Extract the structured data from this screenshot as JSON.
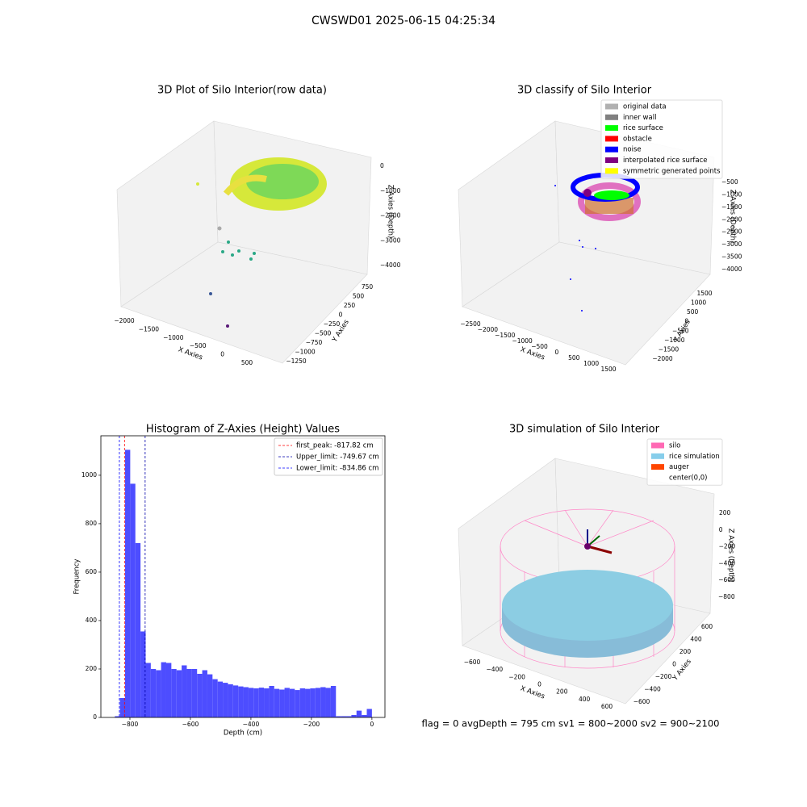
{
  "title": "CWSWD01 2025-06-15 04:25:34",
  "footer": "flag = 0     avgDepth = 795 cm  sv1 = 800~2000  sv2 = 900~2100",
  "chart_data": [
    {
      "type": "scatter3d",
      "title": "3D Plot of Silo Interior(row data)",
      "x_label": "X Axies",
      "y_label": "Y Axies",
      "z_label": "Z Axies (Depth)",
      "xticks": [
        {
          "value": -2000,
          "label": "−2000"
        },
        {
          "value": -1500,
          "label": "−1500"
        },
        {
          "value": -1000,
          "label": "−1000"
        },
        {
          "value": -500,
          "label": "−500"
        },
        0,
        500
      ],
      "yticks": [
        750,
        500,
        250,
        0,
        {
          "value": -250,
          "label": "−250"
        },
        {
          "value": -500,
          "label": "−500"
        },
        {
          "value": -750,
          "label": "−750"
        },
        {
          "value": -1000,
          "label": "−1000"
        },
        {
          "value": -1250,
          "label": "−1250"
        }
      ],
      "zticks": [
        0,
        {
          "value": -1000,
          "label": "−1000"
        },
        {
          "value": -2000,
          "label": "−2000"
        },
        {
          "value": -3000,
          "label": "−3000"
        },
        {
          "value": -4000,
          "label": "−4000"
        }
      ]
    },
    {
      "type": "scatter3d",
      "title": "3D classify of Silo Interior",
      "x_label": "X Axies",
      "y_label": "Y Axies",
      "z_label": "Z Axies (Depth)",
      "xticks": [
        {
          "value": -2500,
          "label": "−2500"
        },
        {
          "value": -2000,
          "label": "−2000"
        },
        {
          "value": -1500,
          "label": "−1500"
        },
        {
          "value": -1000,
          "label": "−1000"
        },
        {
          "value": -500,
          "label": "−500"
        },
        0,
        500,
        1000,
        1500
      ],
      "yticks": [
        1500,
        1000,
        500,
        0,
        {
          "value": -500,
          "label": "−500"
        },
        {
          "value": -1000,
          "label": "−1000"
        },
        {
          "value": -1500,
          "label": "−1500"
        },
        {
          "value": -2000,
          "label": "−2000"
        }
      ],
      "zticks": [
        {
          "value": -500,
          "label": "−500"
        },
        {
          "value": -1000,
          "label": "−1000"
        },
        {
          "value": -1500,
          "label": "−1500"
        },
        {
          "value": -2000,
          "label": "−2000"
        },
        {
          "value": -2500,
          "label": "−2500"
        },
        {
          "value": -3000,
          "label": "−3000"
        },
        {
          "value": -3500,
          "label": "−3500"
        },
        {
          "value": -4000,
          "label": "−4000"
        }
      ],
      "legend": [
        {
          "name": "original data",
          "color": "#b0b0b0"
        },
        {
          "name": "inner wall",
          "color": "#808080"
        },
        {
          "name": "rice surface",
          "color": "#00ff00"
        },
        {
          "name": "obstacle",
          "color": "#ff0000"
        },
        {
          "name": "noise",
          "color": "#0000ff"
        },
        {
          "name": "interpolated rice surface",
          "color": "#800080"
        },
        {
          "name": "symmetric generated points",
          "color": "#ffff00"
        }
      ]
    },
    {
      "type": "histogram",
      "title": "Histogram of Z-Axies (Height) Values",
      "x_label": "Depth (cm)",
      "y_label": "Frequency",
      "color": "#4d4dff",
      "bins": [
        -850,
        -833,
        -816,
        -799,
        -782,
        -765,
        -748,
        -731,
        -714,
        -697,
        -680,
        -663,
        -646,
        -629,
        -612,
        -595,
        -578,
        -561,
        -544,
        -527,
        -510,
        -493,
        -476,
        -459,
        -442,
        -425,
        -408,
        -391,
        -374,
        -357,
        -340,
        -323,
        -306,
        -289,
        -272,
        -255,
        -238,
        -221,
        -204,
        -187,
        -170,
        -153,
        -136,
        -119,
        -102,
        -85,
        -68,
        -51,
        -34,
        -17,
        0
      ],
      "values": [
        5,
        80,
        1105,
        965,
        720,
        355,
        225,
        200,
        195,
        228,
        225,
        200,
        195,
        215,
        200,
        200,
        180,
        195,
        178,
        158,
        148,
        143,
        137,
        132,
        128,
        125,
        122,
        120,
        123,
        120,
        130,
        118,
        115,
        122,
        118,
        113,
        120,
        118,
        120,
        122,
        125,
        122,
        130,
        5,
        5,
        5,
        10,
        28,
        10,
        35
      ],
      "xlim": [
        -896,
        43
      ],
      "ylim": [
        0,
        1163
      ],
      "xticks": [
        {
          "value": -800,
          "label": "−800"
        },
        {
          "value": -600,
          "label": "−600"
        },
        {
          "value": -400,
          "label": "−400"
        },
        {
          "value": -200,
          "label": "−200"
        },
        0
      ],
      "yticks": [
        0,
        200,
        400,
        600,
        800,
        1000
      ],
      "vlines": [
        {
          "label": "first_peak: -817.82 cm",
          "value": -817.82,
          "color": "#ff0000"
        },
        {
          "label": "Upper_limit: -749.67 cm",
          "value": -749.67,
          "color": "#0000aa"
        },
        {
          "label": "Lower_limit: -834.86 cm",
          "value": -834.86,
          "color": "#0000ff"
        }
      ],
      "legend_position": "upper right"
    },
    {
      "type": "scatter3d",
      "title": "3D simulation of Silo Interior",
      "x_label": "X Axies",
      "y_label": "Y Axies",
      "z_label": "Z Axies (Depth)",
      "xticks": [
        {
          "value": -600,
          "label": "−600"
        },
        {
          "value": -400,
          "label": "−400"
        },
        {
          "value": -200,
          "label": "−200"
        },
        0,
        200,
        400,
        600
      ],
      "yticks": [
        600,
        400,
        200,
        0,
        {
          "value": -200,
          "label": "−200"
        },
        {
          "value": -400,
          "label": "−400"
        },
        {
          "value": -600,
          "label": "−600"
        }
      ],
      "zticks": [
        200,
        0,
        {
          "value": -200,
          "label": "−200"
        },
        {
          "value": -400,
          "label": "−400"
        },
        {
          "value": -600,
          "label": "−600"
        },
        {
          "value": -800,
          "label": "−800"
        }
      ],
      "legend": [
        {
          "name": "silo",
          "color": "#ff69b4"
        },
        {
          "name": "rice simulation",
          "color": "#87ceeb"
        },
        {
          "name": "auger",
          "color": "#ff4500"
        },
        {
          "name": "center(0,0)",
          "color": null
        }
      ]
    }
  ]
}
